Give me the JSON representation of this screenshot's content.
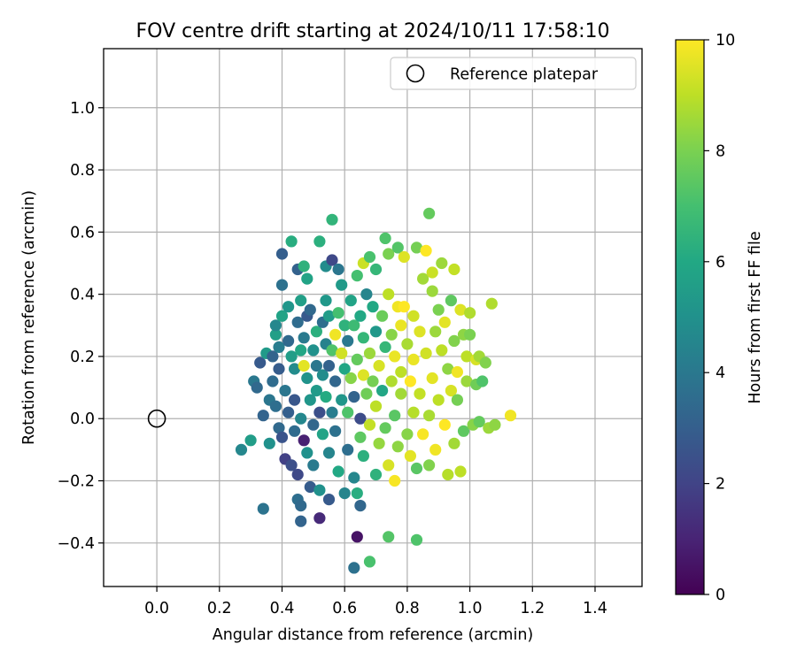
{
  "chart_data": {
    "type": "scatter",
    "title": "FOV centre drift starting at 2024/10/11 17:58:10",
    "xlabel": "Angular distance from reference (arcmin)",
    "ylabel": "Rotation from reference (arcmin)",
    "xlim": [
      -0.17,
      1.55
    ],
    "ylim": [
      -0.54,
      1.19
    ],
    "x_ticks": [
      0.0,
      0.2,
      0.4,
      0.6,
      0.8,
      1.0,
      1.2,
      1.4
    ],
    "y_ticks": [
      -0.4,
      -0.2,
      0.0,
      0.2,
      0.4,
      0.6,
      0.8,
      1.0
    ],
    "grid": true,
    "legend": {
      "position": "top-right",
      "entries": [
        "Reference platepar"
      ]
    },
    "reference_point": {
      "x": 0.0,
      "y": 0.0
    },
    "colorbar": {
      "label": "Hours from first FF file",
      "range": [
        0,
        10
      ],
      "ticks": [
        0,
        2,
        4,
        6,
        8,
        10
      ],
      "colormap": "viridis"
    },
    "points": [
      [
        0.27,
        -0.1,
        4.6
      ],
      [
        0.3,
        -0.07,
        5.5
      ],
      [
        0.31,
        0.12,
        4.0
      ],
      [
        0.32,
        0.1,
        3.4
      ],
      [
        0.33,
        0.18,
        2.8
      ],
      [
        0.34,
        -0.29,
        3.8
      ],
      [
        0.34,
        0.01,
        3.2
      ],
      [
        0.35,
        0.21,
        5.4
      ],
      [
        0.36,
        -0.08,
        5.0
      ],
      [
        0.36,
        0.06,
        3.9
      ],
      [
        0.37,
        0.12,
        3.5
      ],
      [
        0.37,
        0.2,
        3.2
      ],
      [
        0.38,
        0.27,
        5.6
      ],
      [
        0.38,
        0.3,
        4.6
      ],
      [
        0.38,
        0.04,
        3.6
      ],
      [
        0.39,
        0.16,
        2.9
      ],
      [
        0.39,
        -0.03,
        3.4
      ],
      [
        0.39,
        0.23,
        4.2
      ],
      [
        0.4,
        0.33,
        5.8
      ],
      [
        0.4,
        0.43,
        3.7
      ],
      [
        0.4,
        0.53,
        3.0
      ],
      [
        0.4,
        -0.06,
        2.6
      ],
      [
        0.41,
        0.09,
        3.9
      ],
      [
        0.41,
        -0.13,
        1.9
      ],
      [
        0.42,
        0.36,
        5.2
      ],
      [
        0.42,
        0.25,
        3.4
      ],
      [
        0.42,
        0.02,
        3.0
      ],
      [
        0.43,
        -0.15,
        2.4
      ],
      [
        0.43,
        0.57,
        6.2
      ],
      [
        0.43,
        0.2,
        5.5
      ],
      [
        0.44,
        0.16,
        4.8
      ],
      [
        0.44,
        0.06,
        2.7
      ],
      [
        0.44,
        -0.04,
        3.5
      ],
      [
        0.45,
        0.48,
        3.1
      ],
      [
        0.45,
        0.31,
        3.5
      ],
      [
        0.45,
        -0.18,
        2.2
      ],
      [
        0.45,
        -0.26,
        3.6
      ],
      [
        0.46,
        -0.28,
        3.4
      ],
      [
        0.46,
        0.38,
        5.6
      ],
      [
        0.46,
        0.22,
        5.9
      ],
      [
        0.46,
        -0.33,
        3.2
      ],
      [
        0.46,
        0.0,
        4.6
      ],
      [
        0.47,
        0.17,
        9.6
      ],
      [
        0.47,
        0.49,
        6.4
      ],
      [
        0.47,
        0.26,
        4.1
      ],
      [
        0.47,
        -0.07,
        0.9
      ],
      [
        0.48,
        0.13,
        5.1
      ],
      [
        0.48,
        0.45,
        5.8
      ],
      [
        0.48,
        -0.11,
        5.0
      ],
      [
        0.48,
        0.33,
        2.8
      ],
      [
        0.49,
        -0.22,
        2.9
      ],
      [
        0.49,
        0.06,
        5.2
      ],
      [
        0.49,
        0.35,
        3.4
      ],
      [
        0.5,
        -0.02,
        3.3
      ],
      [
        0.5,
        0.22,
        5.0
      ],
      [
        0.5,
        -0.15,
        4.1
      ],
      [
        0.51,
        0.17,
        3.9
      ],
      [
        0.51,
        0.28,
        6.3
      ],
      [
        0.51,
        0.09,
        5.4
      ],
      [
        0.52,
        -0.32,
        1.2
      ],
      [
        0.52,
        0.57,
        6.3
      ],
      [
        0.52,
        -0.23,
        5.0
      ],
      [
        0.52,
        0.02,
        2.4
      ],
      [
        0.53,
        0.31,
        3.6
      ],
      [
        0.53,
        0.14,
        4.8
      ],
      [
        0.53,
        -0.05,
        5.8
      ],
      [
        0.54,
        0.24,
        4.4
      ],
      [
        0.54,
        0.38,
        5.3
      ],
      [
        0.54,
        0.07,
        6.1
      ],
      [
        0.54,
        0.49,
        4.8
      ],
      [
        0.55,
        -0.26,
        2.8
      ],
      [
        0.55,
        -0.11,
        4.5
      ],
      [
        0.55,
        0.17,
        3.1
      ],
      [
        0.55,
        0.33,
        5.5
      ],
      [
        0.56,
        0.64,
        6.5
      ],
      [
        0.56,
        0.02,
        4.2
      ],
      [
        0.56,
        0.51,
        2.2
      ],
      [
        0.56,
        0.22,
        7.2
      ],
      [
        0.57,
        -0.04,
        3.7
      ],
      [
        0.57,
        0.27,
        9.8
      ],
      [
        0.57,
        0.12,
        3.3
      ],
      [
        0.58,
        0.48,
        3.9
      ],
      [
        0.58,
        -0.17,
        6.0
      ],
      [
        0.58,
        0.34,
        7.0
      ],
      [
        0.59,
        0.21,
        9.3
      ],
      [
        0.59,
        0.06,
        5.2
      ],
      [
        0.59,
        0.43,
        5.4
      ],
      [
        0.6,
        -0.24,
        4.5
      ],
      [
        0.6,
        0.16,
        5.9
      ],
      [
        0.6,
        0.3,
        6.4
      ],
      [
        0.61,
        -0.1,
        3.6
      ],
      [
        0.61,
        0.02,
        7.2
      ],
      [
        0.61,
        0.25,
        4.0
      ],
      [
        0.62,
        0.13,
        8.2
      ],
      [
        0.62,
        0.38,
        5.8
      ],
      [
        0.63,
        -0.48,
        3.7
      ],
      [
        0.63,
        -0.19,
        4.6
      ],
      [
        0.63,
        0.07,
        3.2
      ],
      [
        0.63,
        0.3,
        6.8
      ],
      [
        0.64,
        -0.38,
        0.5
      ],
      [
        0.64,
        -0.24,
        6.2
      ],
      [
        0.64,
        0.19,
        7.6
      ],
      [
        0.64,
        0.46,
        7.0
      ],
      [
        0.65,
        0.0,
        2.3
      ],
      [
        0.65,
        -0.06,
        7.5
      ],
      [
        0.65,
        -0.28,
        3.3
      ],
      [
        0.65,
        0.33,
        6.0
      ],
      [
        0.66,
        0.14,
        9.5
      ],
      [
        0.66,
        0.26,
        6.6
      ],
      [
        0.66,
        -0.12,
        6.3
      ],
      [
        0.66,
        0.5,
        9.2
      ],
      [
        0.67,
        0.4,
        4.5
      ],
      [
        0.67,
        0.08,
        7.8
      ],
      [
        0.68,
        -0.46,
        7.1
      ],
      [
        0.68,
        0.21,
        8.5
      ],
      [
        0.68,
        0.52,
        7.1
      ],
      [
        0.68,
        -0.02,
        9.1
      ],
      [
        0.69,
        0.36,
        6.0
      ],
      [
        0.69,
        0.12,
        7.9
      ],
      [
        0.7,
        -0.18,
        6.4
      ],
      [
        0.7,
        0.28,
        5.3
      ],
      [
        0.7,
        0.04,
        9.0
      ],
      [
        0.7,
        0.48,
        6.6
      ],
      [
        0.71,
        -0.08,
        8.4
      ],
      [
        0.71,
        0.17,
        9.4
      ],
      [
        0.72,
        0.33,
        7.7
      ],
      [
        0.72,
        0.09,
        5.9
      ],
      [
        0.73,
        0.58,
        7.2
      ],
      [
        0.73,
        -0.03,
        7.6
      ],
      [
        0.73,
        0.23,
        6.6
      ],
      [
        0.74,
        0.53,
        8.0
      ],
      [
        0.74,
        -0.38,
        7.3
      ],
      [
        0.74,
        -0.15,
        9.4
      ],
      [
        0.74,
        0.4,
        9.0
      ],
      [
        0.75,
        0.12,
        8.8
      ],
      [
        0.75,
        0.27,
        8.2
      ],
      [
        0.76,
        -0.2,
        9.9
      ],
      [
        0.76,
        0.01,
        7.4
      ],
      [
        0.76,
        0.2,
        9.7
      ],
      [
        0.77,
        0.36,
        9.8
      ],
      [
        0.77,
        0.55,
        7.3
      ],
      [
        0.77,
        -0.09,
        8.3
      ],
      [
        0.78,
        0.15,
        9.0
      ],
      [
        0.78,
        0.3,
        9.7
      ],
      [
        0.78,
        0.08,
        8.6
      ],
      [
        0.79,
        0.36,
        10.0
      ],
      [
        0.79,
        0.52,
        9.5
      ],
      [
        0.8,
        -0.05,
        8.2
      ],
      [
        0.8,
        0.24,
        8.7
      ],
      [
        0.81,
        0.12,
        10.0
      ],
      [
        0.81,
        -0.12,
        9.6
      ],
      [
        0.82,
        0.33,
        9.3
      ],
      [
        0.82,
        0.02,
        8.9
      ],
      [
        0.82,
        0.19,
        9.7
      ],
      [
        0.83,
        -0.39,
        7.2
      ],
      [
        0.83,
        0.55,
        7.9
      ],
      [
        0.83,
        -0.16,
        7.4
      ],
      [
        0.84,
        0.08,
        9.1
      ],
      [
        0.84,
        0.28,
        9.5
      ],
      [
        0.85,
        0.45,
        8.6
      ],
      [
        0.85,
        -0.05,
        9.9
      ],
      [
        0.86,
        0.21,
        9.3
      ],
      [
        0.86,
        0.54,
        10.0
      ],
      [
        0.87,
        0.66,
        7.6
      ],
      [
        0.87,
        0.01,
        8.7
      ],
      [
        0.87,
        -0.15,
        8.1
      ],
      [
        0.88,
        0.41,
        8.5
      ],
      [
        0.88,
        0.13,
        9.6
      ],
      [
        0.88,
        0.47,
        9.2
      ],
      [
        0.89,
        0.28,
        8.5
      ],
      [
        0.89,
        -0.1,
        9.8
      ],
      [
        0.9,
        0.06,
        9.0
      ],
      [
        0.9,
        0.35,
        8.0
      ],
      [
        0.91,
        0.5,
        8.5
      ],
      [
        0.91,
        0.22,
        9.0
      ],
      [
        0.92,
        -0.02,
        10.0
      ],
      [
        0.92,
        0.31,
        9.6
      ],
      [
        0.93,
        0.16,
        8.3
      ],
      [
        0.93,
        -0.18,
        8.9
      ],
      [
        0.94,
        0.09,
        9.4
      ],
      [
        0.94,
        0.38,
        7.5
      ],
      [
        0.95,
        0.48,
        9.1
      ],
      [
        0.95,
        -0.08,
        8.6
      ],
      [
        0.95,
        0.25,
        8.1
      ],
      [
        0.96,
        0.15,
        9.8
      ],
      [
        0.96,
        0.06,
        7.9
      ],
      [
        0.97,
        -0.17,
        9.0
      ],
      [
        0.97,
        0.35,
        9.5
      ],
      [
        0.98,
        0.27,
        8.3
      ],
      [
        0.98,
        -0.04,
        7.5
      ],
      [
        0.99,
        0.2,
        9.0
      ],
      [
        0.99,
        0.12,
        8.5
      ],
      [
        1.0,
        0.34,
        8.8
      ],
      [
        1.0,
        0.27,
        8.0
      ],
      [
        1.01,
        -0.02,
        8.2
      ],
      [
        1.02,
        0.11,
        7.8
      ],
      [
        1.02,
        0.19,
        9.4
      ],
      [
        1.03,
        0.2,
        8.6
      ],
      [
        1.03,
        -0.01,
        7.6
      ],
      [
        1.04,
        0.12,
        7.2
      ],
      [
        1.05,
        0.18,
        8.1
      ],
      [
        1.06,
        -0.03,
        8.5
      ],
      [
        1.07,
        0.37,
        8.8
      ],
      [
        1.08,
        -0.02,
        8.3
      ],
      [
        1.13,
        0.01,
        9.8
      ]
    ]
  }
}
